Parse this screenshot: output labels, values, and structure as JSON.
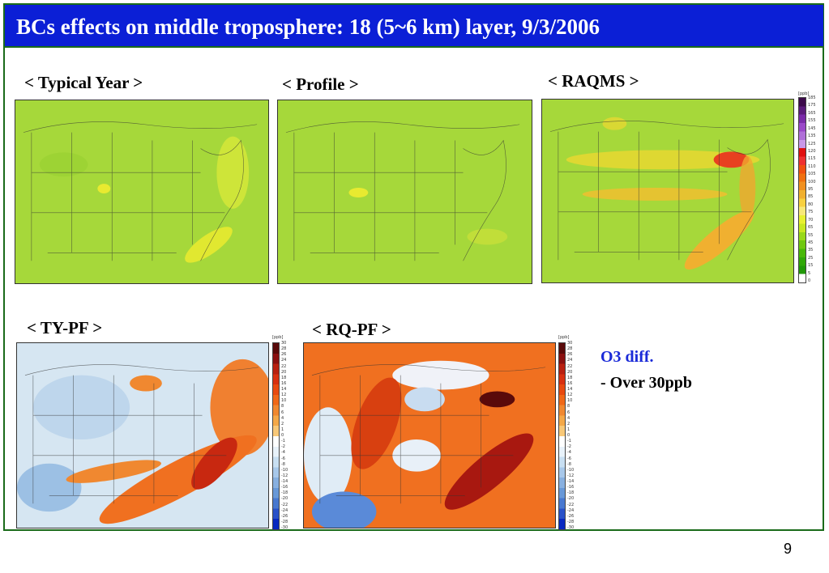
{
  "slide": {
    "title": "BCs effects on middle troposphere: 18 (5~6 km) layer, 9/3/2006",
    "page_number": "9"
  },
  "panels": {
    "typical_year": "< Typical Year >",
    "profile": "< Profile >",
    "raqms": "< RAQMS >",
    "ty_pf": "< TY-PF >",
    "rq_pf": "< RQ-PF >"
  },
  "notes": {
    "line1": "O3 diff.",
    "line2": "- Over 30ppb"
  },
  "colorbars": {
    "unit": "[ppb]",
    "ozone_ticks": [
      "185",
      "175",
      "165",
      "155",
      "145",
      "135",
      "125",
      "120",
      "115",
      "110",
      "105",
      "100",
      "95",
      "85",
      "80",
      "75",
      "70",
      "65",
      "55",
      "45",
      "35",
      "25",
      "15",
      "5",
      "0"
    ],
    "diff_ticks": [
      "30",
      "28",
      "26",
      "24",
      "22",
      "20",
      "18",
      "16",
      "14",
      "12",
      "10",
      "8",
      "6",
      "4",
      "2",
      "1",
      "0",
      "-1",
      "-2",
      "-4",
      "-6",
      "-8",
      "-10",
      "-12",
      "-14",
      "-16",
      "-18",
      "-20",
      "-22",
      "-24",
      "-26",
      "-28",
      "-30"
    ],
    "ozone_colors": [
      "#3c0a4a",
      "#5a1a7a",
      "#7a2aa8",
      "#9a48c8",
      "#b070d8",
      "#c898e8",
      "#e01010",
      "#ee3030",
      "#f05010",
      "#f07010",
      "#f09020",
      "#f0b030",
      "#f8d040",
      "#f8e878",
      "#e8f030",
      "#c8e820",
      "#98d818",
      "#70c810",
      "#48b808",
      "#30a808",
      "#209808",
      "#ffffff"
    ],
    "diff_colors": [
      "#5a0a0a",
      "#8a1010",
      "#b82010",
      "#d83010",
      "#e84a10",
      "#f06818",
      "#f08830",
      "#f4a848",
      "#f8c878",
      "#ffffff",
      "#e8f2fa",
      "#c8dff2",
      "#a8c8ea",
      "#88b0e0",
      "#6898d8",
      "#4878d0",
      "#2850c8",
      "#0828c0"
    ]
  }
}
